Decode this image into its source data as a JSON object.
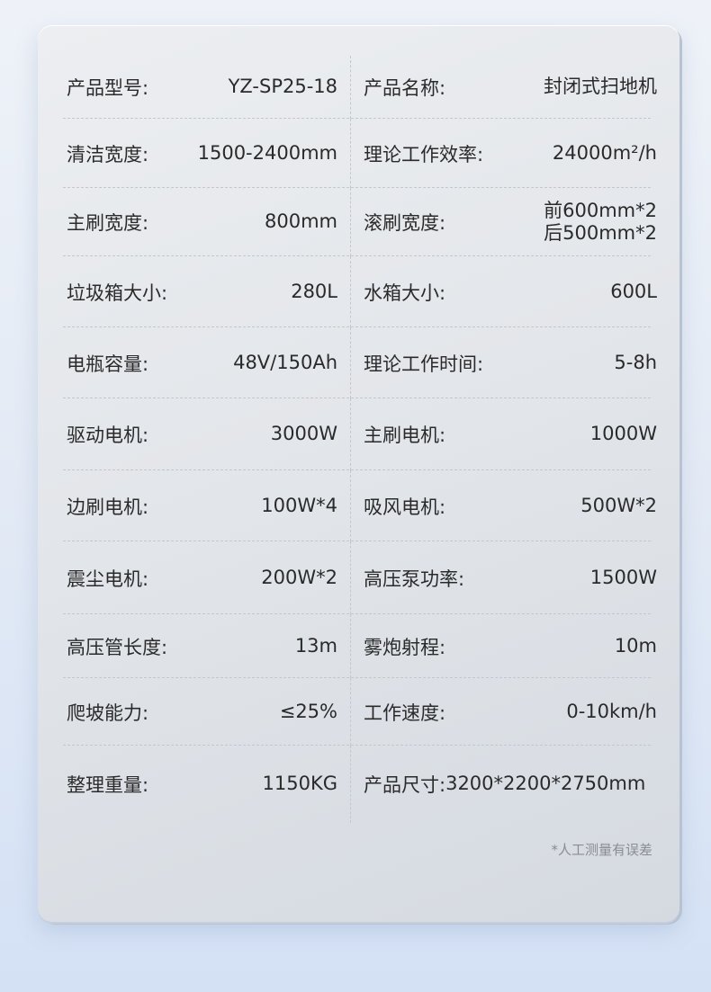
{
  "specs": [
    {
      "l_label": "产品型号:",
      "l_value": "YZ-SP25-18",
      "r_label": "产品名称:",
      "r_value": "封闭式扫地机"
    },
    {
      "l_label": "清洁宽度:",
      "l_value": "1500-2400mm",
      "r_label": "理论工作效率:",
      "r_value": "24000m²/h"
    },
    {
      "l_label": "主刷宽度:",
      "l_value": "800mm",
      "r_label": "滚刷宽度:",
      "r_value": "前600mm*2",
      "r_value2": "后500mm*2"
    },
    {
      "l_label": "垃圾箱大小:",
      "l_value": "280L",
      "r_label": "水箱大小:",
      "r_value": "600L"
    },
    {
      "l_label": "电瓶容量:",
      "l_value": "48V/150Ah",
      "r_label": "理论工作时间:",
      "r_value": "5-8h"
    },
    {
      "l_label": "驱动电机:",
      "l_value": "3000W",
      "r_label": "主刷电机:",
      "r_value": "1000W"
    },
    {
      "l_label": "边刷电机:",
      "l_value": "100W*4",
      "r_label": "吸风电机:",
      "r_value": "500W*2"
    },
    {
      "l_label": "震尘电机:",
      "l_value": "200W*2",
      "r_label": "高压泵功率:",
      "r_value": "1500W"
    },
    {
      "l_label": "高压管长度:",
      "l_value": "13m",
      "r_label": "雾炮射程:",
      "r_value": "10m"
    },
    {
      "l_label": "爬坡能力:",
      "l_value": "≤25%",
      "r_label": "工作速度:",
      "r_value": "0-10km/h"
    },
    {
      "l_label": "整理重量:",
      "l_value": "1150KG",
      "r_label": "产品尺寸:",
      "r_value": "3200*2200*2750mm"
    }
  ],
  "note": "*人工测量有误差"
}
